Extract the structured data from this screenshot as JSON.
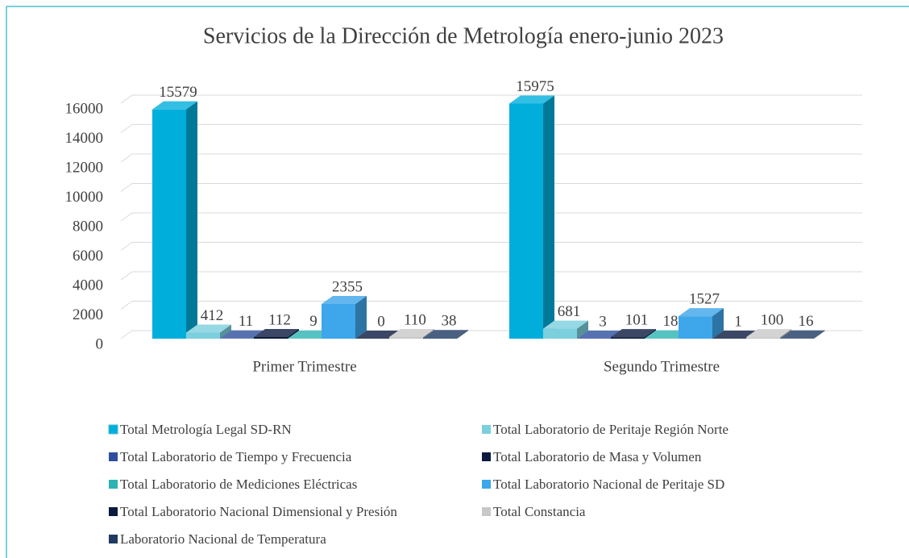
{
  "chart_data": {
    "type": "bar3d",
    "title": "Servicios de la Dirección de Metrología enero-junio 2023",
    "categories": [
      "Primer Trimestre",
      "Segundo Trimestre"
    ],
    "series": [
      {
        "name": "Total Metrología Legal SD-RN",
        "color": "#00aedc",
        "values": [
          15579,
          15975
        ]
      },
      {
        "name": "Total Laboratorio de Peritaje Región Norte",
        "color": "#7ccfdc",
        "values": [
          412,
          681
        ]
      },
      {
        "name": "Total Laboratorio de Tiempo y Frecuencia",
        "color": "#2e4f9e",
        "values": [
          11,
          3
        ]
      },
      {
        "name": "Total Laboratorio de Masa y Volumen",
        "color": "#0b1a3e",
        "values": [
          112,
          101
        ]
      },
      {
        "name": "Total Laboratorio de Mediciones Eléctricas",
        "color": "#2db3b3",
        "values": [
          9,
          18
        ]
      },
      {
        "name": "Total Laboratorio Nacional de Peritaje SD",
        "color": "#3ea6ea",
        "values": [
          2355,
          1527
        ]
      },
      {
        "name": "Total Laboratorio Nacional Dimensional y Presión",
        "color": "#0b1a3e",
        "values": [
          0,
          1
        ]
      },
      {
        "name": "Total Constancia",
        "color": "#c8c8c8",
        "values": [
          110,
          100
        ]
      },
      {
        "name": "Laboratorio Nacional de Temperatura",
        "color": "#1f3a62",
        "values": [
          38,
          16
        ]
      }
    ],
    "ylim": [
      0,
      16000
    ],
    "yticks": [
      0,
      2000,
      4000,
      6000,
      8000,
      10000,
      12000,
      14000,
      16000
    ],
    "grid": true
  }
}
